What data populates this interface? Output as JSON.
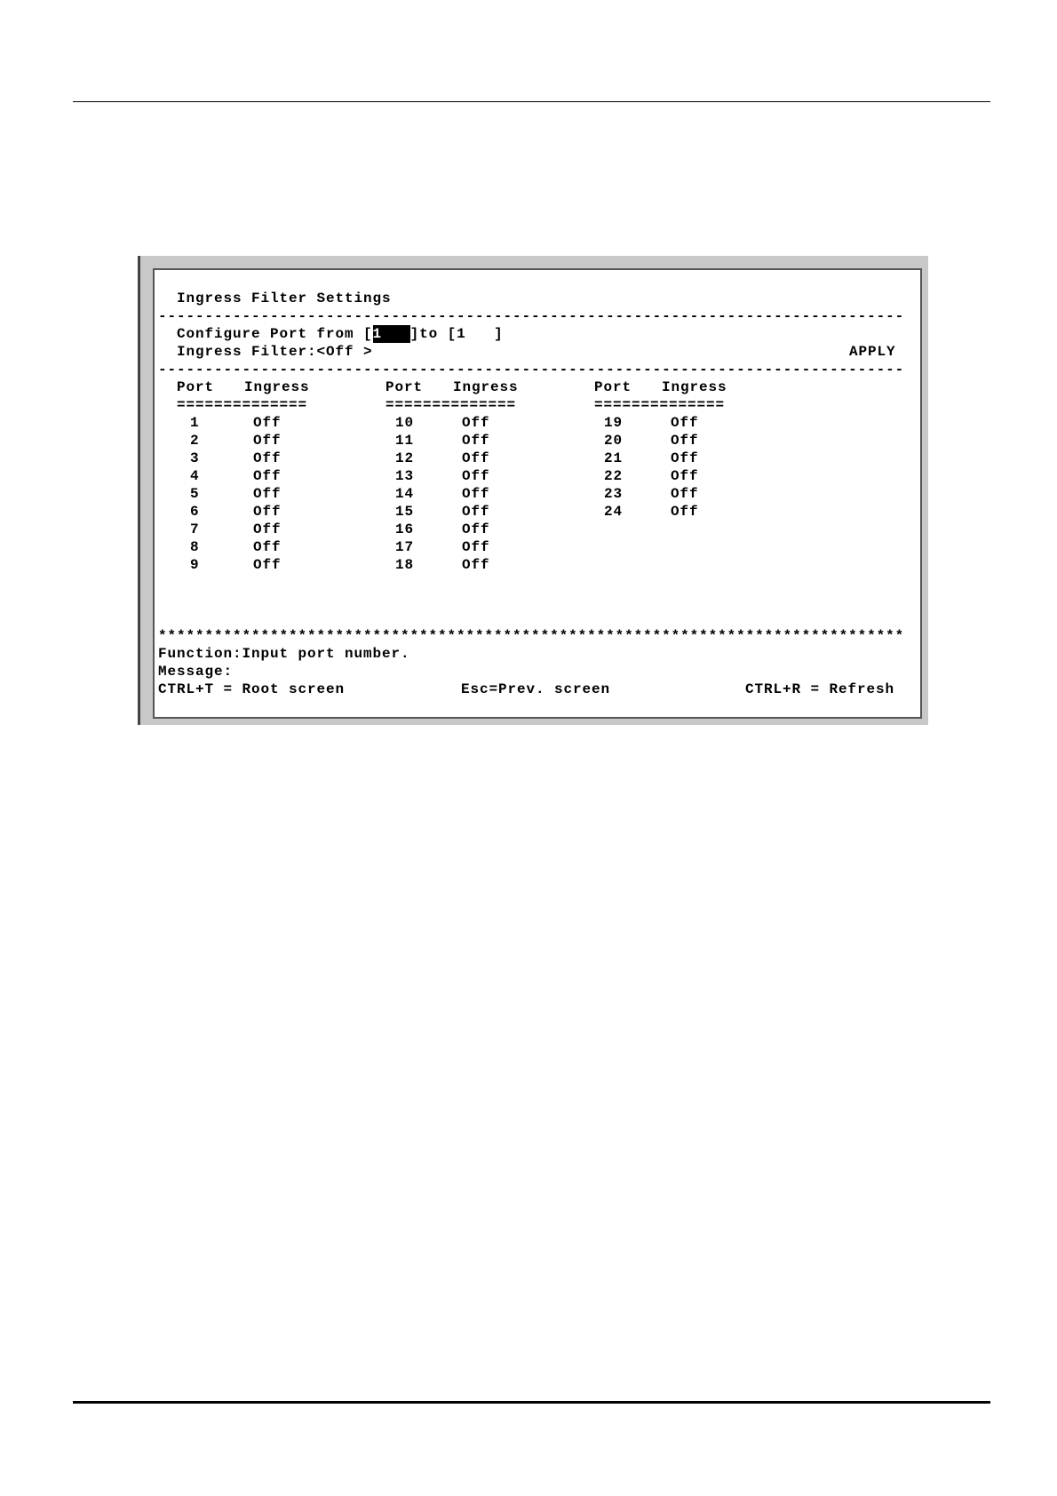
{
  "screen": {
    "title": "Ingress Filter Settings",
    "divider": "--------------------------------------------------------------------------------",
    "configure_label": "Configure Port from [",
    "from_value": "1",
    "from_pad": "   ",
    "to_label": "]to [",
    "to_value": "1   ",
    "to_close": "]",
    "filter_label": "Ingress Filter:<",
    "filter_value": "Off",
    "filter_close": " >",
    "apply_label": "APPLY",
    "col_port": "Port",
    "col_ingress": "Ingress",
    "underline": "==============",
    "ports": [
      {
        "port": "1",
        "ingress": "Off"
      },
      {
        "port": "2",
        "ingress": "Off"
      },
      {
        "port": "3",
        "ingress": "Off"
      },
      {
        "port": "4",
        "ingress": "Off"
      },
      {
        "port": "5",
        "ingress": "Off"
      },
      {
        "port": "6",
        "ingress": "Off"
      },
      {
        "port": "7",
        "ingress": "Off"
      },
      {
        "port": "8",
        "ingress": "Off"
      },
      {
        "port": "9",
        "ingress": "Off"
      },
      {
        "port": "10",
        "ingress": "Off"
      },
      {
        "port": "11",
        "ingress": "Off"
      },
      {
        "port": "12",
        "ingress": "Off"
      },
      {
        "port": "13",
        "ingress": "Off"
      },
      {
        "port": "14",
        "ingress": "Off"
      },
      {
        "port": "15",
        "ingress": "Off"
      },
      {
        "port": "16",
        "ingress": "Off"
      },
      {
        "port": "17",
        "ingress": "Off"
      },
      {
        "port": "18",
        "ingress": "Off"
      },
      {
        "port": "19",
        "ingress": "Off"
      },
      {
        "port": "20",
        "ingress": "Off"
      },
      {
        "port": "21",
        "ingress": "Off"
      },
      {
        "port": "22",
        "ingress": "Off"
      },
      {
        "port": "23",
        "ingress": "Off"
      },
      {
        "port": "24",
        "ingress": "Off"
      }
    ],
    "stars": "********************************************************************************",
    "function_text": "Function:Input port number.",
    "message_text": "Message:",
    "hotkey_root": "CTRL+T = Root screen",
    "hotkey_prev": "Esc=Prev. screen",
    "hotkey_refresh": "CTRL+R = Refresh"
  }
}
